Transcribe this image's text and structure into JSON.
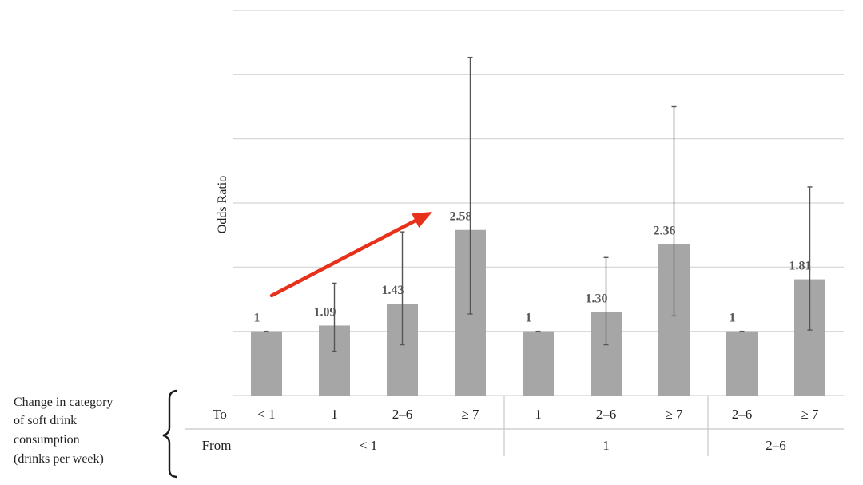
{
  "chart_data": {
    "type": "bar",
    "ylabel": "Odds Ratio",
    "ylim": [
      0,
      6
    ],
    "grid": true,
    "categories_to": [
      "< 1",
      "1",
      "2–6",
      "≥ 7",
      "1",
      "2–6",
      "≥ 7",
      "2–6",
      "≥ 7"
    ],
    "values": [
      1,
      1.09,
      1.43,
      2.58,
      1,
      1.3,
      2.36,
      1,
      1.81
    ],
    "value_labels": [
      "1",
      "1.09",
      "1.43",
      "2.58",
      "1",
      "1.30",
      "2.36",
      "1",
      "1.81"
    ],
    "ci_lower": [
      1,
      0.69,
      0.79,
      1.27,
      1,
      0.79,
      1.24,
      1,
      1.02
    ],
    "ci_upper": [
      1,
      1.75,
      2.55,
      5.27,
      1,
      2.15,
      4.5,
      1,
      3.25
    ],
    "groups_from": [
      {
        "label": "< 1",
        "count": 4
      },
      {
        "label": "1",
        "count": 3
      },
      {
        "label": "2–6",
        "count": 2
      }
    ],
    "row_labels": {
      "to": "To",
      "from": "From"
    },
    "side_note": [
      "Change in category",
      "of soft drink",
      "consumption",
      "(drinks per week)"
    ],
    "annotation": {
      "type": "arrow",
      "color": "#e8311a",
      "from_category_index": 0,
      "to_category_index": 3
    }
  }
}
